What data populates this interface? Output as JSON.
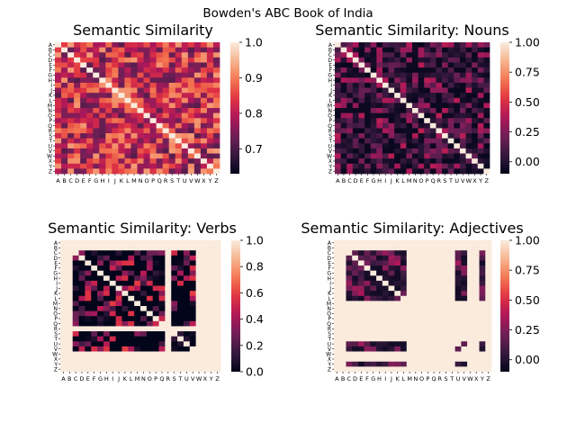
{
  "figure": {
    "title": "Bowden's ABC Book of India"
  },
  "palette": {
    "rocket_stops": [
      "#03051a",
      "#36193e",
      "#701f57",
      "#ae1759",
      "#e13342",
      "#f37651",
      "#f6b48f",
      "#faebdd"
    ]
  },
  "chart_data": [
    {
      "type": "heatmap",
      "title": "Semantic Similarity",
      "categories": [
        "A",
        "B",
        "C",
        "D",
        "E",
        "F",
        "G",
        "H",
        "I",
        "J",
        "K",
        "L",
        "M",
        "N",
        "O",
        "P",
        "Q",
        "R",
        "S",
        "T",
        "U",
        "V",
        "W",
        "X",
        "Y",
        "Z"
      ],
      "colorbar": {
        "vmin": 0.63,
        "vmax": 1.0,
        "ticks": [
          0.7,
          0.8,
          0.9,
          1.0
        ],
        "tick_labels": [
          "0.7",
          "0.8",
          "0.9",
          "1.0"
        ]
      },
      "pattern": "dense-high",
      "value_range": [
        0.63,
        1.0
      ],
      "diagonal": 1.0
    },
    {
      "type": "heatmap",
      "title": "Semantic Similarity: Nouns",
      "categories": [
        "A",
        "B",
        "C",
        "D",
        "E",
        "F",
        "G",
        "H",
        "I",
        "J",
        "K",
        "L",
        "M",
        "N",
        "O",
        "P",
        "Q",
        "R",
        "S",
        "T",
        "U",
        "V",
        "W",
        "X",
        "Y",
        "Z"
      ],
      "colorbar": {
        "vmin": -0.1,
        "vmax": 1.0,
        "ticks": [
          0.0,
          0.25,
          0.5,
          0.75,
          1.0
        ],
        "tick_labels": [
          "0.00",
          "0.25",
          "0.50",
          "0.75",
          "1.00"
        ]
      },
      "pattern": "sparse-low",
      "value_range": [
        -0.1,
        0.5
      ],
      "diagonal": 1.0
    },
    {
      "type": "heatmap",
      "title": "Semantic Similarity: Verbs",
      "categories": [
        "A",
        "B",
        "C",
        "D",
        "E",
        "F",
        "G",
        "H",
        "I",
        "J",
        "K",
        "L",
        "M",
        "N",
        "O",
        "P",
        "Q",
        "R",
        "S",
        "T",
        "U",
        "V",
        "W",
        "X",
        "Y",
        "Z"
      ],
      "colorbar": {
        "vmin": 0.0,
        "vmax": 1.0,
        "ticks": [
          0.0,
          0.2,
          0.4,
          0.6,
          0.8,
          1.0
        ],
        "tick_labels": [
          "0.0",
          "0.2",
          "0.4",
          "0.6",
          "0.8",
          "1.0"
        ]
      },
      "pattern": "striped",
      "empty_letters": [
        "A",
        "B",
        "R",
        "W",
        "X",
        "Y",
        "Z"
      ],
      "diagonal": 1.0
    },
    {
      "type": "heatmap",
      "title": "Semantic Similarity: Adjectives",
      "categories": [
        "A",
        "B",
        "C",
        "D",
        "E",
        "F",
        "G",
        "H",
        "I",
        "J",
        "K",
        "L",
        "M",
        "N",
        "O",
        "P",
        "Q",
        "R",
        "S",
        "T",
        "U",
        "V",
        "W",
        "X",
        "Y",
        "Z"
      ],
      "colorbar": {
        "vmin": -0.1,
        "vmax": 1.0,
        "ticks": [
          0.0,
          0.25,
          0.5,
          0.75,
          1.0
        ],
        "tick_labels": [
          "0.00",
          "0.25",
          "0.50",
          "0.75",
          "1.00"
        ]
      },
      "pattern": "block",
      "empty_letters": [
        "A",
        "B",
        "M",
        "N",
        "O",
        "P",
        "Q",
        "R",
        "S",
        "T",
        "W",
        "X",
        "Z"
      ],
      "diagonal": 1.0
    }
  ]
}
